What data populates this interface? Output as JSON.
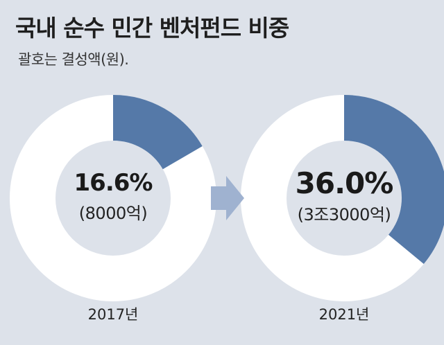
{
  "title": "국내 순수 민간 벤처펀드 비중",
  "subtitle": "괄호는 결성액(원).",
  "colors": {
    "background": "#dde2ea",
    "ring_base": "#ffffff",
    "ring_highlight": "#5579a8",
    "arrow": "#9fb2d0",
    "inner": "#dde2ea"
  },
  "chart_data": [
    {
      "type": "pie",
      "year_label": "2017년",
      "percent_label": "16.6%",
      "amount_label": "(8000억)",
      "values": [
        16.6,
        83.4
      ]
    },
    {
      "type": "pie",
      "year_label": "2021년",
      "percent_label": "36.0%",
      "amount_label": "(3조3000억)",
      "values": [
        36.0,
        64.0
      ]
    }
  ]
}
